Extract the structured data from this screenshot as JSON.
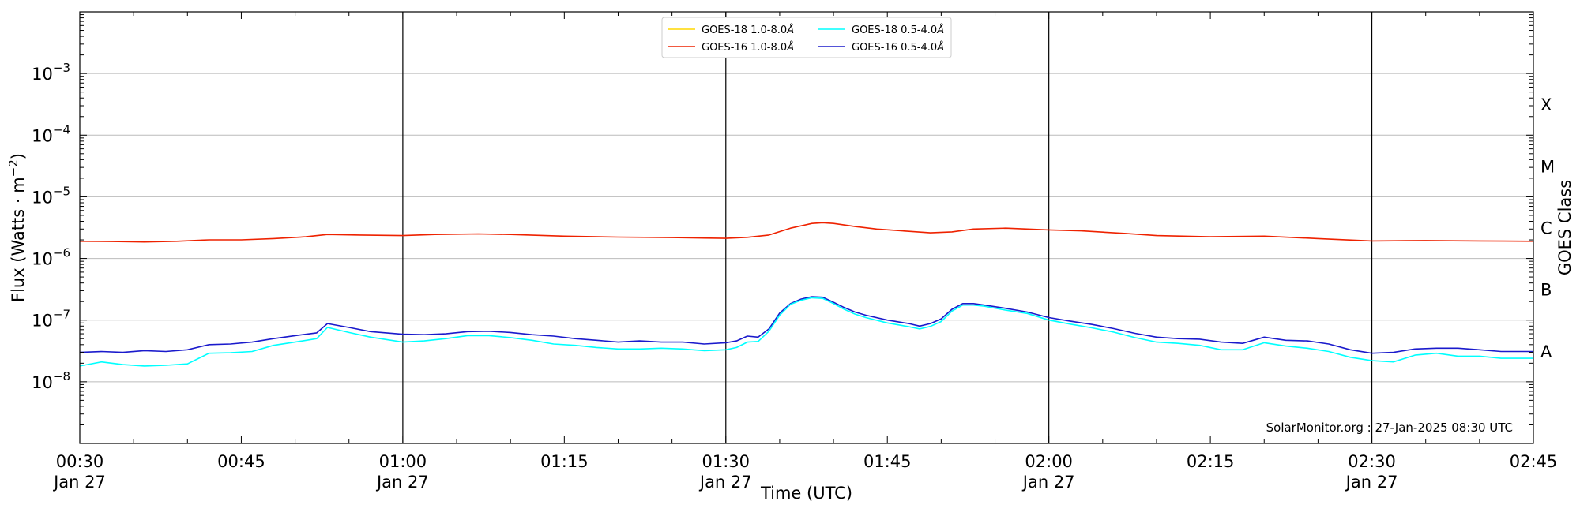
{
  "chart_data": {
    "type": "line",
    "xlabel": "Time (UTC)",
    "ylabel": "Flux (Watts · m",
    "ylabel_sup": "−2",
    "ylabel_close": ")",
    "right_label": "GOES Class",
    "credit": "SolarMonitor.org : 27-Jan-2025 08:30 UTC",
    "y_scale": "log",
    "ylim": [
      1e-09,
      0.01
    ],
    "xlim_minutes": [
      30,
      165
    ],
    "grid": "horizontal at decades",
    "vlines_minutes": [
      60,
      90,
      120,
      150
    ],
    "legend_placement": "top-center",
    "x_ticks": [
      {
        "m": 30,
        "line1": "00:30",
        "line2": "Jan 27"
      },
      {
        "m": 45,
        "line1": "00:45",
        "line2": ""
      },
      {
        "m": 60,
        "line1": "01:00",
        "line2": "Jan 27"
      },
      {
        "m": 75,
        "line1": "01:15",
        "line2": ""
      },
      {
        "m": 90,
        "line1": "01:30",
        "line2": "Jan 27"
      },
      {
        "m": 105,
        "line1": "01:45",
        "line2": ""
      },
      {
        "m": 120,
        "line1": "02:00",
        "line2": "Jan 27"
      },
      {
        "m": 135,
        "line1": "02:15",
        "line2": ""
      },
      {
        "m": 150,
        "line1": "02:30",
        "line2": "Jan 27"
      },
      {
        "m": 165,
        "line1": "02:45",
        "line2": ""
      }
    ],
    "y_ticks": [
      {
        "exp": -8,
        "label": "10",
        "sup": "−8"
      },
      {
        "exp": -7,
        "label": "10",
        "sup": "−7"
      },
      {
        "exp": -6,
        "label": "10",
        "sup": "−6"
      },
      {
        "exp": -5,
        "label": "10",
        "sup": "−5"
      },
      {
        "exp": -4,
        "label": "10",
        "sup": "−4"
      },
      {
        "exp": -3,
        "label": "10",
        "sup": "−3"
      }
    ],
    "goes_classes": [
      {
        "label": "A",
        "exp": -7.5
      },
      {
        "label": "B",
        "exp": -6.5
      },
      {
        "label": "C",
        "exp": -5.5
      },
      {
        "label": "M",
        "exp": -4.5
      },
      {
        "label": "X",
        "exp": -3.5
      }
    ],
    "legend": [
      {
        "name": "GOES-18 1.0-8.0",
        "unit": "Å",
        "color": "#ffd700"
      },
      {
        "name": "GOES-18 0.5-4.0",
        "unit": "Å",
        "color": "#00ffff"
      },
      {
        "name": "GOES-16 1.0-8.0",
        "unit": "Å",
        "color": "#ee2200"
      },
      {
        "name": "GOES-16 0.5-4.0",
        "unit": "Å",
        "color": "#1a1acc"
      }
    ],
    "series": [
      {
        "name": "GOES-16 1.0-8.0Å",
        "color": "#ee2200",
        "x": [
          30,
          33,
          36,
          39,
          42,
          45,
          48,
          51,
          53,
          56,
          60,
          63,
          67,
          70,
          75,
          80,
          85,
          90,
          92,
          94,
          96,
          98,
          99,
          100,
          102,
          104,
          107,
          109,
          111,
          113,
          116,
          120,
          123,
          127,
          130,
          135,
          140,
          145,
          150,
          155,
          160,
          165
        ],
        "y": [
          1.9e-06,
          1.88e-06,
          1.85e-06,
          1.9e-06,
          2e-06,
          2e-06,
          2.1e-06,
          2.25e-06,
          2.45e-06,
          2.4e-06,
          2.35e-06,
          2.45e-06,
          2.5e-06,
          2.45e-06,
          2.3e-06,
          2.22e-06,
          2.18e-06,
          2.12e-06,
          2.2e-06,
          2.4e-06,
          3.1e-06,
          3.7e-06,
          3.8e-06,
          3.7e-06,
          3.3e-06,
          3e-06,
          2.75e-06,
          2.6e-06,
          2.7e-06,
          3e-06,
          3.1e-06,
          2.9e-06,
          2.8e-06,
          2.55e-06,
          2.35e-06,
          2.25e-06,
          2.3e-06,
          2.1e-06,
          1.92e-06,
          1.95e-06,
          1.92e-06,
          1.9e-06
        ]
      },
      {
        "name": "GOES-16 0.5-4.0Å",
        "color": "#1a1acc",
        "x": [
          30,
          32,
          34,
          36,
          38,
          40,
          42,
          44,
          46,
          48,
          50,
          52,
          53,
          55,
          57,
          60,
          62,
          64,
          66,
          68,
          70,
          72,
          74,
          76,
          78,
          80,
          82,
          84,
          86,
          88,
          90,
          91,
          92,
          93,
          94,
          95,
          96,
          97,
          98,
          99,
          100,
          101,
          102,
          103,
          105,
          107,
          108,
          109,
          110,
          111,
          112,
          113,
          114,
          116,
          118,
          120,
          122,
          124,
          126,
          128,
          130,
          132,
          134,
          136,
          138,
          140,
          142,
          144,
          146,
          148,
          150,
          152,
          154,
          156,
          158,
          160,
          162,
          165
        ],
        "y": [
          3e-08,
          3.1e-08,
          3e-08,
          3.2e-08,
          3.1e-08,
          3.3e-08,
          4e-08,
          4.1e-08,
          4.4e-08,
          5e-08,
          5.6e-08,
          6.2e-08,
          8.8e-08,
          7.6e-08,
          6.5e-08,
          5.9e-08,
          5.8e-08,
          6e-08,
          6.5e-08,
          6.6e-08,
          6.3e-08,
          5.8e-08,
          5.5e-08,
          5e-08,
          4.7e-08,
          4.4e-08,
          4.6e-08,
          4.4e-08,
          4.4e-08,
          4.1e-08,
          4.3e-08,
          4.6e-08,
          5.5e-08,
          5.3e-08,
          7.2e-08,
          1.3e-07,
          1.85e-07,
          2.2e-07,
          2.4e-07,
          2.35e-07,
          1.95e-07,
          1.6e-07,
          1.35e-07,
          1.2e-07,
          1e-07,
          8.8e-08,
          8e-08,
          8.8e-08,
          1.05e-07,
          1.5e-07,
          1.85e-07,
          1.85e-07,
          1.75e-07,
          1.55e-07,
          1.35e-07,
          1.1e-07,
          9.6e-08,
          8.5e-08,
          7.3e-08,
          6.1e-08,
          5.3e-08,
          5e-08,
          4.9e-08,
          4.4e-08,
          4.2e-08,
          5.3e-08,
          4.7e-08,
          4.6e-08,
          4.1e-08,
          3.3e-08,
          2.9e-08,
          3e-08,
          3.4e-08,
          3.5e-08,
          3.5e-08,
          3.3e-08,
          3.1e-08,
          3.1e-08
        ]
      },
      {
        "name": "GOES-18 0.5-4.0Å",
        "color": "#00ffff",
        "x": [
          30,
          32,
          34,
          36,
          38,
          40,
          42,
          44,
          46,
          48,
          50,
          52,
          53,
          55,
          57,
          60,
          62,
          64,
          66,
          68,
          70,
          72,
          74,
          76,
          78,
          80,
          82,
          84,
          86,
          88,
          90,
          91,
          92,
          93,
          94,
          95,
          96,
          97,
          98,
          99,
          100,
          101,
          102,
          103,
          105,
          107,
          108,
          109,
          110,
          111,
          112,
          113,
          114,
          116,
          118,
          120,
          122,
          124,
          126,
          128,
          130,
          132,
          134,
          136,
          138,
          140,
          142,
          144,
          146,
          148,
          150,
          152,
          154,
          156,
          158,
          160,
          162,
          165
        ],
        "y": [
          1.8e-08,
          2.1e-08,
          1.9e-08,
          1.8e-08,
          1.85e-08,
          1.95e-08,
          2.9e-08,
          2.95e-08,
          3.1e-08,
          3.9e-08,
          4.4e-08,
          5e-08,
          7.6e-08,
          6.3e-08,
          5.3e-08,
          4.4e-08,
          4.6e-08,
          5e-08,
          5.6e-08,
          5.6e-08,
          5.2e-08,
          4.7e-08,
          4.1e-08,
          3.9e-08,
          3.6e-08,
          3.4e-08,
          3.4e-08,
          3.5e-08,
          3.4e-08,
          3.2e-08,
          3.3e-08,
          3.6e-08,
          4.4e-08,
          4.5e-08,
          6.6e-08,
          1.2e-07,
          1.8e-07,
          2.1e-07,
          2.3e-07,
          2.25e-07,
          1.85e-07,
          1.5e-07,
          1.25e-07,
          1.1e-07,
          9e-08,
          7.8e-08,
          7.2e-08,
          7.9e-08,
          9.5e-08,
          1.4e-07,
          1.75e-07,
          1.75e-07,
          1.68e-07,
          1.45e-07,
          1.28e-07,
          1e-07,
          8.6e-08,
          7.5e-08,
          6.4e-08,
          5.2e-08,
          4.4e-08,
          4.2e-08,
          3.9e-08,
          3.3e-08,
          3.3e-08,
          4.3e-08,
          3.8e-08,
          3.5e-08,
          3.1e-08,
          2.5e-08,
          2.2e-08,
          2.1e-08,
          2.7e-08,
          2.9e-08,
          2.6e-08,
          2.6e-08,
          2.4e-08,
          2.4e-08
        ]
      }
    ]
  }
}
